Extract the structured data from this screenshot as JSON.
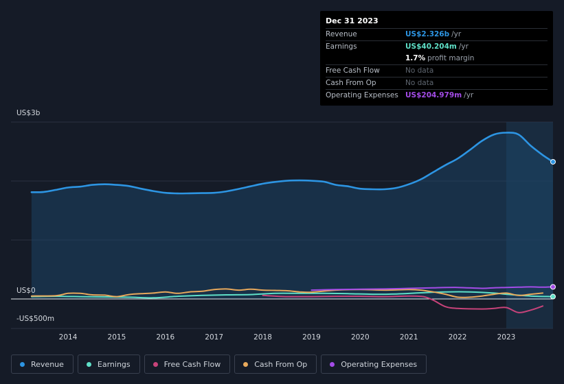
{
  "tooltip": {
    "date": "Dec 31 2023",
    "rows": {
      "revenue": {
        "label": "Revenue",
        "value": "US$2.326b",
        "unit": "/yr"
      },
      "earnings": {
        "label": "Earnings",
        "value": "US$40.204m",
        "unit": "/yr"
      },
      "margin": {
        "value": "1.7%",
        "unit": "profit margin"
      },
      "fcf": {
        "label": "Free Cash Flow",
        "value": "No data"
      },
      "cfo": {
        "label": "Cash From Op",
        "value": "No data"
      },
      "opex": {
        "label": "Operating Expenses",
        "value": "US$204.979m",
        "unit": "/yr"
      }
    }
  },
  "legend": [
    {
      "label": "Revenue",
      "color": "#2d95e3"
    },
    {
      "label": "Earnings",
      "color": "#5fe0c8"
    },
    {
      "label": "Free Cash Flow",
      "color": "#c8437a"
    },
    {
      "label": "Cash From Op",
      "color": "#e8a95c"
    },
    {
      "label": "Operating Expenses",
      "color": "#a44ce8"
    }
  ],
  "chart_data": {
    "type": "line",
    "y_tick_labels": [
      "US$3b",
      "US$0",
      "-US$500m"
    ],
    "ylim": [
      -500,
      3000
    ],
    "y_unit": "US$m",
    "x_ticks": [
      2014,
      2015,
      2016,
      2017,
      2018,
      2019,
      2020,
      2021,
      2022,
      2023
    ],
    "xlim": [
      2013.28,
      2023.96
    ],
    "highlight_start": 2023.0,
    "grid": true,
    "legend_position": "bottom",
    "series": [
      {
        "name": "Revenue",
        "color": "#2d95e3",
        "area": true,
        "x": [
          2013.25,
          2013.5,
          2013.75,
          2014.0,
          2014.25,
          2014.5,
          2014.75,
          2015.0,
          2015.25,
          2015.5,
          2015.75,
          2016.0,
          2016.25,
          2016.5,
          2016.75,
          2017.0,
          2017.25,
          2017.5,
          2017.75,
          2018.0,
          2018.25,
          2018.5,
          2018.75,
          2019.0,
          2019.25,
          2019.5,
          2019.75,
          2020.0,
          2020.25,
          2020.5,
          2020.75,
          2021.0,
          2021.25,
          2021.5,
          2021.75,
          2022.0,
          2022.25,
          2022.5,
          2022.75,
          2023.0,
          2023.25,
          2023.5,
          2023.75,
          2023.96
        ],
        "values": [
          1810,
          1815,
          1850,
          1890,
          1905,
          1935,
          1945,
          1935,
          1915,
          1870,
          1830,
          1800,
          1790,
          1792,
          1795,
          1800,
          1825,
          1865,
          1910,
          1955,
          1985,
          2005,
          2010,
          2005,
          1990,
          1935,
          1910,
          1870,
          1860,
          1860,
          1885,
          1945,
          2030,
          2150,
          2270,
          2380,
          2525,
          2680,
          2790,
          2820,
          2790,
          2600,
          2440,
          2326
        ]
      },
      {
        "name": "Earnings",
        "color": "#5fe0c8",
        "x": [
          2013.25,
          2013.75,
          2014.25,
          2014.75,
          2015.25,
          2015.75,
          2016.25,
          2016.75,
          2017.25,
          2017.75,
          2018.25,
          2018.75,
          2019.25,
          2019.75,
          2020.25,
          2020.75,
          2021.25,
          2021.75,
          2022.25,
          2022.75,
          2023.0,
          2023.5,
          2023.96
        ],
        "values": [
          40,
          45,
          40,
          35,
          30,
          20,
          45,
          60,
          70,
          75,
          95,
          95,
          95,
          90,
          80,
          85,
          105,
          120,
          120,
          100,
          80,
          50,
          40
        ]
      },
      {
        "name": "Free Cash Flow",
        "color": "#c8437a",
        "x": [
          2018.0,
          2018.5,
          2019.0,
          2019.5,
          2020.0,
          2020.5,
          2021.0,
          2021.3,
          2021.5,
          2021.75,
          2022.0,
          2022.5,
          2022.75,
          2023.0,
          2023.25,
          2023.5,
          2023.75
        ],
        "values": [
          60,
          40,
          40,
          45,
          45,
          40,
          50,
          40,
          -20,
          -130,
          -160,
          -170,
          -160,
          -145,
          -230,
          -190,
          -120
        ]
      },
      {
        "name": "Cash From Op",
        "color": "#e8a95c",
        "x": [
          2013.25,
          2013.75,
          2014.0,
          2014.25,
          2014.5,
          2014.75,
          2015.0,
          2015.25,
          2015.5,
          2015.75,
          2016.0,
          2016.25,
          2016.5,
          2016.75,
          2017.0,
          2017.25,
          2017.5,
          2017.75,
          2018.0,
          2018.25,
          2018.5,
          2018.75,
          2019.0,
          2019.5,
          2020.0,
          2020.5,
          2021.0,
          2021.25,
          2021.5,
          2021.75,
          2022.0,
          2022.25,
          2022.5,
          2022.75,
          2023.0,
          2023.25,
          2023.5,
          2023.75
        ],
        "values": [
          50,
          55,
          95,
          95,
          70,
          65,
          40,
          75,
          90,
          100,
          120,
          95,
          120,
          130,
          160,
          170,
          150,
          165,
          150,
          145,
          140,
          120,
          115,
          150,
          160,
          150,
          160,
          150,
          120,
          80,
          30,
          30,
          50,
          80,
          100,
          60,
          80,
          100
        ]
      },
      {
        "name": "Operating Expenses",
        "color": "#a44ce8",
        "x": [
          2019.0,
          2019.5,
          2020.0,
          2020.5,
          2021.0,
          2021.5,
          2022.0,
          2022.5,
          2022.75,
          2023.0,
          2023.25,
          2023.5,
          2023.75,
          2023.96
        ],
        "values": [
          150,
          160,
          165,
          170,
          180,
          190,
          195,
          180,
          190,
          195,
          200,
          205,
          200,
          205
        ]
      }
    ]
  }
}
